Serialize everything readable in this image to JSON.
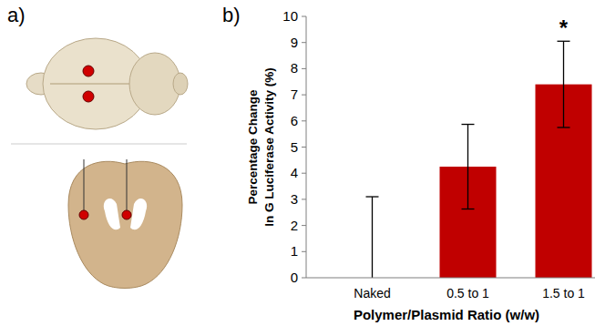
{
  "panel_labels": [
    "a)",
    "b)"
  ],
  "chart_data": {
    "type": "bar",
    "y_label": "Percentage Change\nIn G Luciferase Activity (%)",
    "x_label": "Polymer/Plasmid Ratio (w/w)",
    "categories": [
      "Naked",
      "0.5 to 1",
      "1.5 to 1"
    ],
    "values": [
      0,
      4.25,
      7.4
    ],
    "errors": [
      3.1,
      1.62,
      1.65
    ],
    "color": "#c00000",
    "ylim": [
      0,
      10
    ],
    "yticks": [
      0,
      1,
      2,
      3,
      4,
      5,
      6,
      7,
      8,
      9,
      10
    ],
    "grid": false,
    "annotations": [
      {
        "text": "*",
        "category": "1.5 to 1"
      }
    ]
  }
}
